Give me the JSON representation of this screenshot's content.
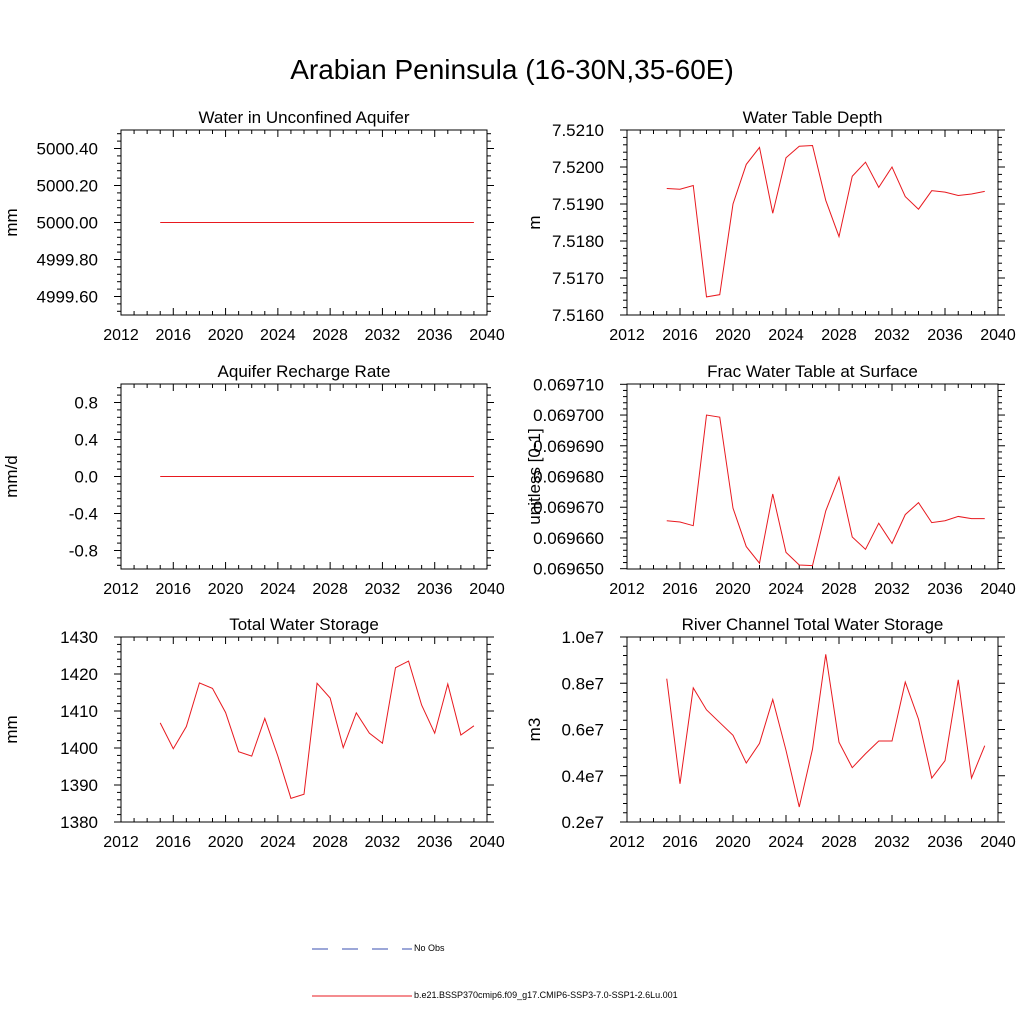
{
  "main_title": "Arabian Peninsula (16-30N,35-60E)",
  "colors": {
    "series": "#e8191f",
    "obs": "#3a4fb0",
    "axis": "#000000"
  },
  "legend": {
    "obs_label": "No Obs",
    "model_label": "b.e21.BSSP370cmip6.f09_g17.CMIP6-SSP3-7.0-SSP1-2.6Lu.001"
  },
  "chart_data": [
    {
      "type": "line",
      "title": "Water in Unconfined Aquifer",
      "ylabel": "mm",
      "xlim": [
        2012,
        2040
      ],
      "ylim": [
        4999.5,
        5000.5
      ],
      "xticks": [
        2012,
        2016,
        2020,
        2024,
        2028,
        2032,
        2036,
        2040
      ],
      "yticks": [
        4999.6,
        4999.8,
        5000.0,
        5000.2,
        5000.4
      ],
      "ytick_labels": [
        "4999.60",
        "4999.80",
        "5000.00",
        "5000.20",
        "5000.40"
      ],
      "x": [
        2015,
        2039
      ],
      "values": [
        5000.0,
        5000.0
      ]
    },
    {
      "type": "line",
      "title": "Water Table Depth",
      "ylabel": "m",
      "xlim": [
        2012,
        2040
      ],
      "ylim": [
        7.516,
        7.521
      ],
      "xticks": [
        2012,
        2016,
        2020,
        2024,
        2028,
        2032,
        2036,
        2040
      ],
      "yticks": [
        7.516,
        7.517,
        7.518,
        7.519,
        7.52,
        7.521
      ],
      "ytick_labels": [
        "7.5160",
        "7.5170",
        "7.5180",
        "7.5190",
        "7.5200",
        "7.5210"
      ],
      "x": [
        2015,
        2016,
        2017,
        2018,
        2019,
        2020,
        2021,
        2022,
        2023,
        2024,
        2025,
        2026,
        2027,
        2028,
        2029,
        2030,
        2031,
        2032,
        2033,
        2034,
        2035,
        2036,
        2037,
        2038,
        2039
      ],
      "values": [
        7.51942,
        7.5194,
        7.5195,
        7.51649,
        7.51655,
        7.519,
        7.52007,
        7.52053,
        7.51875,
        7.52025,
        7.52056,
        7.52058,
        7.5191,
        7.51812,
        7.51975,
        7.52013,
        7.51945,
        7.52,
        7.5192,
        7.51886,
        7.51936,
        7.51932,
        7.51923,
        7.51927,
        7.51934
      ]
    },
    {
      "type": "line",
      "title": "Aquifer Recharge Rate",
      "ylabel": "mm/d",
      "xlim": [
        2012,
        2040
      ],
      "ylim": [
        -1.0,
        1.0
      ],
      "xticks": [
        2012,
        2016,
        2020,
        2024,
        2028,
        2032,
        2036,
        2040
      ],
      "yticks": [
        -0.8,
        -0.4,
        0.0,
        0.4,
        0.8
      ],
      "ytick_labels": [
        "-0.8",
        "-0.4",
        "0.0",
        "0.4",
        "0.8"
      ],
      "x": [
        2015,
        2039
      ],
      "values": [
        0.0,
        0.0
      ]
    },
    {
      "type": "line",
      "title": "Frac Water Table at Surface",
      "ylabel": "unitless [0-1]",
      "xlim": [
        2012,
        2040
      ],
      "ylim": [
        0.0696499,
        0.0697101
      ],
      "xticks": [
        2012,
        2016,
        2020,
        2024,
        2028,
        2032,
        2036,
        2040
      ],
      "yticks": [
        0.06965,
        0.06966,
        0.06967,
        0.06968,
        0.06969,
        0.0697,
        0.06971
      ],
      "ytick_labels": [
        "0.069650",
        "0.069660",
        "0.069670",
        "0.069680",
        "0.069690",
        "0.069700",
        "0.069710"
      ],
      "x": [
        2015,
        2016,
        2017,
        2018,
        2019,
        2020,
        2021,
        2022,
        2023,
        2024,
        2025,
        2026,
        2027,
        2028,
        2029,
        2030,
        2031,
        2032,
        2033,
        2034,
        2035,
        2036,
        2037,
        2038,
        2039
      ],
      "values": [
        0.0696656,
        0.0696652,
        0.069664,
        0.0697,
        0.0696993,
        0.0696697,
        0.0696572,
        0.0696518,
        0.0696743,
        0.0696553,
        0.0696512,
        0.069651,
        0.0696688,
        0.0696798,
        0.0696603,
        0.0696563,
        0.0696648,
        0.0696582,
        0.0696676,
        0.0696715,
        0.069665,
        0.0696656,
        0.069667,
        0.0696663,
        0.0696663
      ]
    },
    {
      "type": "line",
      "title": "Total Water Storage",
      "ylabel": "mm",
      "xlim": [
        2012,
        2040
      ],
      "ylim": [
        1380,
        1430
      ],
      "xticks": [
        2012,
        2016,
        2020,
        2024,
        2028,
        2032,
        2036,
        2040
      ],
      "yticks": [
        1380,
        1390,
        1400,
        1410,
        1420,
        1430
      ],
      "ytick_labels": [
        "1380",
        "1390",
        "1400",
        "1410",
        "1420",
        "1430"
      ],
      "x": [
        2015,
        2016,
        2017,
        2018,
        2019,
        2020,
        2021,
        2022,
        2023,
        2024,
        2025,
        2026,
        2027,
        2028,
        2029,
        2030,
        2031,
        2032,
        2033,
        2034,
        2035,
        2036,
        2037,
        2038,
        2039
      ],
      "values": [
        1406.8,
        1399.8,
        1405.8,
        1417.6,
        1416.1,
        1409.6,
        1399.0,
        1397.8,
        1408.0,
        1397.8,
        1386.4,
        1387.5,
        1417.5,
        1413.5,
        1400.1,
        1409.5,
        1404.0,
        1401.3,
        1421.7,
        1423.5,
        1411.6,
        1404.0,
        1417.3,
        1403.5,
        1406.0
      ]
    },
    {
      "type": "line",
      "title": "River Channel Total Water Storage",
      "ylabel": "m3",
      "xlim": [
        2012,
        2040
      ],
      "ylim": [
        2000000,
        10000000
      ],
      "xticks": [
        2012,
        2016,
        2020,
        2024,
        2028,
        2032,
        2036,
        2040
      ],
      "yticks": [
        2000000,
        4000000,
        6000000,
        8000000,
        10000000
      ],
      "ytick_labels": [
        "0.2e7",
        "0.4e7",
        "0.6e7",
        "0.8e7",
        "1.0e7"
      ],
      "x": [
        2015,
        2016,
        2017,
        2018,
        2019,
        2020,
        2021,
        2022,
        2023,
        2024,
        2025,
        2026,
        2027,
        2028,
        2029,
        2030,
        2031,
        2032,
        2033,
        2034,
        2035,
        2036,
        2037,
        2038,
        2039
      ],
      "values": [
        8200000,
        3650000,
        7800000,
        6850000,
        6300000,
        5750000,
        4550000,
        5400000,
        7300000,
        5100000,
        2650000,
        5150000,
        9250000,
        5450000,
        4350000,
        4950000,
        5500000,
        5500000,
        8050000,
        6450000,
        3900000,
        4650000,
        8150000,
        3900000,
        5300000
      ]
    }
  ]
}
